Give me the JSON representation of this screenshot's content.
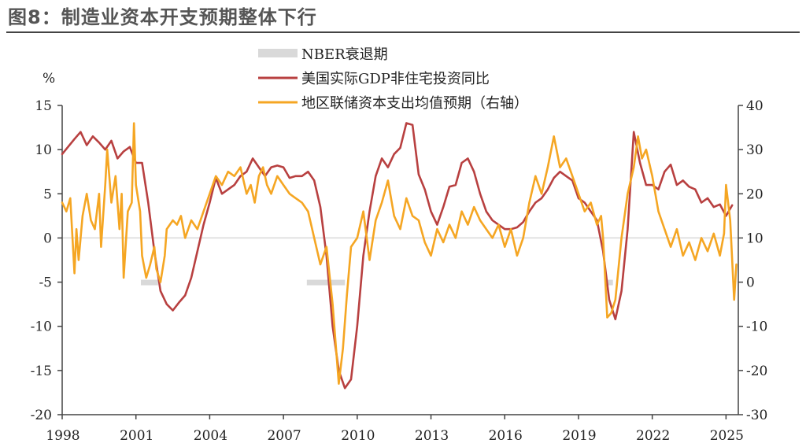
{
  "chart_data": {
    "type": "line",
    "title": "图8：制造业资本开支预期整体下行",
    "left_axis_unit": "%",
    "ylim_left": [
      -20,
      15
    ],
    "yticks_left": [
      15,
      10,
      5,
      0,
      -5,
      -10,
      -15,
      -20
    ],
    "ylim_right": [
      -30,
      40
    ],
    "yticks_right": [
      40,
      30,
      20,
      10,
      0,
      -10,
      -20,
      -30
    ],
    "xlim": [
      1998,
      2025.5
    ],
    "xticks": [
      "1998",
      "2001",
      "2004",
      "2007",
      "2010",
      "2013",
      "2016",
      "2019",
      "2022",
      "2025"
    ],
    "legend_placement": "top-center",
    "recessions": {
      "name": "NBER衰退期",
      "color": "#d9d9d9",
      "periods": [
        [
          2001.2,
          2001.9
        ],
        [
          2007.95,
          2009.5
        ],
        [
          2020.1,
          2020.4
        ]
      ]
    },
    "series": [
      {
        "name": "美国实际GDP非住宅投资同比",
        "axis": "left",
        "color": "#b84040",
        "points": [
          [
            1998.0,
            9.5
          ],
          [
            1998.5,
            11.2
          ],
          [
            1998.75,
            12.0
          ],
          [
            1999.0,
            10.5
          ],
          [
            1999.25,
            11.5
          ],
          [
            1999.5,
            10.8
          ],
          [
            1999.75,
            10.0
          ],
          [
            2000.0,
            11.0
          ],
          [
            2000.25,
            9.0
          ],
          [
            2000.5,
            9.8
          ],
          [
            2000.75,
            10.3
          ],
          [
            2001.0,
            8.5
          ],
          [
            2001.25,
            8.5
          ],
          [
            2001.5,
            4.0
          ],
          [
            2001.75,
            -1.5
          ],
          [
            2002.0,
            -6.0
          ],
          [
            2002.25,
            -7.5
          ],
          [
            2002.5,
            -8.2
          ],
          [
            2002.75,
            -7.3
          ],
          [
            2003.0,
            -6.5
          ],
          [
            2003.25,
            -4.5
          ],
          [
            2003.5,
            -1.5
          ],
          [
            2003.75,
            1.5
          ],
          [
            2004.0,
            4.0
          ],
          [
            2004.25,
            6.8
          ],
          [
            2004.5,
            5.0
          ],
          [
            2004.75,
            5.5
          ],
          [
            2005.0,
            6.0
          ],
          [
            2005.25,
            7.0
          ],
          [
            2005.5,
            7.5
          ],
          [
            2005.75,
            9.0
          ],
          [
            2006.0,
            8.0
          ],
          [
            2006.25,
            7.0
          ],
          [
            2006.5,
            8.0
          ],
          [
            2006.75,
            8.2
          ],
          [
            2007.0,
            8.0
          ],
          [
            2007.25,
            6.8
          ],
          [
            2007.5,
            7.0
          ],
          [
            2007.75,
            7.0
          ],
          [
            2008.0,
            7.5
          ],
          [
            2008.25,
            6.5
          ],
          [
            2008.5,
            3.5
          ],
          [
            2008.75,
            -2.0
          ],
          [
            2009.0,
            -10.0
          ],
          [
            2009.25,
            -15.0
          ],
          [
            2009.5,
            -17.0
          ],
          [
            2009.75,
            -16.0
          ],
          [
            2010.0,
            -10.0
          ],
          [
            2010.25,
            -2.0
          ],
          [
            2010.5,
            3.0
          ],
          [
            2010.75,
            7.0
          ],
          [
            2011.0,
            9.0
          ],
          [
            2011.25,
            8.0
          ],
          [
            2011.5,
            9.5
          ],
          [
            2011.75,
            10.2
          ],
          [
            2012.0,
            13.0
          ],
          [
            2012.25,
            12.8
          ],
          [
            2012.5,
            7.2
          ],
          [
            2012.75,
            5.5
          ],
          [
            2013.0,
            3.0
          ],
          [
            2013.25,
            1.5
          ],
          [
            2013.5,
            3.5
          ],
          [
            2013.75,
            5.8
          ],
          [
            2014.0,
            6.0
          ],
          [
            2014.25,
            8.5
          ],
          [
            2014.5,
            9.0
          ],
          [
            2014.75,
            7.5
          ],
          [
            2015.0,
            5.0
          ],
          [
            2015.25,
            3.0
          ],
          [
            2015.5,
            2.0
          ],
          [
            2015.75,
            1.5
          ],
          [
            2016.0,
            1.0
          ],
          [
            2016.25,
            1.0
          ],
          [
            2016.5,
            1.2
          ],
          [
            2016.75,
            1.8
          ],
          [
            2017.0,
            3.0
          ],
          [
            2017.25,
            4.0
          ],
          [
            2017.5,
            4.5
          ],
          [
            2017.75,
            5.5
          ],
          [
            2018.0,
            6.8
          ],
          [
            2018.25,
            7.5
          ],
          [
            2018.5,
            7.0
          ],
          [
            2018.75,
            6.5
          ],
          [
            2019.0,
            4.5
          ],
          [
            2019.25,
            4.0
          ],
          [
            2019.5,
            3.0
          ],
          [
            2019.75,
            2.0
          ],
          [
            2020.0,
            -1.5
          ],
          [
            2020.25,
            -7.0
          ],
          [
            2020.5,
            -9.2
          ],
          [
            2020.75,
            -6.0
          ],
          [
            2021.0,
            1.0
          ],
          [
            2021.25,
            12.0
          ],
          [
            2021.5,
            8.5
          ],
          [
            2021.75,
            6.0
          ],
          [
            2022.0,
            6.0
          ],
          [
            2022.25,
            5.5
          ],
          [
            2022.5,
            7.5
          ],
          [
            2022.75,
            8.3
          ],
          [
            2023.0,
            6.0
          ],
          [
            2023.25,
            6.5
          ],
          [
            2023.5,
            5.8
          ],
          [
            2023.75,
            5.5
          ],
          [
            2024.0,
            4.0
          ],
          [
            2024.25,
            4.5
          ],
          [
            2024.5,
            3.5
          ],
          [
            2024.75,
            3.8
          ],
          [
            2025.0,
            2.5
          ],
          [
            2025.25,
            3.7
          ]
        ]
      },
      {
        "name": "地区联储资本支出均值预期（右轴）",
        "axis": "right",
        "color": "#f5a623",
        "points": [
          [
            1998.0,
            18.0
          ],
          [
            1998.17,
            16.0
          ],
          [
            1998.33,
            19.0
          ],
          [
            1998.42,
            10.0
          ],
          [
            1998.5,
            2.0
          ],
          [
            1998.58,
            12.0
          ],
          [
            1998.67,
            5.0
          ],
          [
            1998.83,
            15.0
          ],
          [
            1999.0,
            20.0
          ],
          [
            1999.17,
            14.0
          ],
          [
            1999.33,
            12.0
          ],
          [
            1999.5,
            20.0
          ],
          [
            1999.58,
            8.0
          ],
          [
            1999.75,
            22.0
          ],
          [
            1999.83,
            30.0
          ],
          [
            2000.0,
            18.0
          ],
          [
            2000.17,
            24.0
          ],
          [
            2000.33,
            12.0
          ],
          [
            2000.42,
            20.0
          ],
          [
            2000.5,
            1.0
          ],
          [
            2000.67,
            16.0
          ],
          [
            2000.83,
            18.0
          ],
          [
            2000.92,
            36.0
          ],
          [
            2001.0,
            22.0
          ],
          [
            2001.17,
            16.0
          ],
          [
            2001.25,
            6.0
          ],
          [
            2001.42,
            1.0
          ],
          [
            2001.58,
            4.0
          ],
          [
            2001.75,
            8.0
          ],
          [
            2001.83,
            3.0
          ],
          [
            2002.0,
            0.0
          ],
          [
            2002.17,
            6.0
          ],
          [
            2002.25,
            12.0
          ],
          [
            2002.5,
            14.0
          ],
          [
            2002.67,
            13.0
          ],
          [
            2002.83,
            15.0
          ],
          [
            2003.0,
            10.0
          ],
          [
            2003.25,
            14.0
          ],
          [
            2003.5,
            12.0
          ],
          [
            2003.75,
            16.0
          ],
          [
            2004.0,
            20.0
          ],
          [
            2004.25,
            24.0
          ],
          [
            2004.5,
            22.0
          ],
          [
            2004.75,
            25.0
          ],
          [
            2005.0,
            24.0
          ],
          [
            2005.25,
            26.0
          ],
          [
            2005.5,
            20.0
          ],
          [
            2005.67,
            22.0
          ],
          [
            2005.83,
            18.0
          ],
          [
            2006.0,
            24.0
          ],
          [
            2006.17,
            26.0
          ],
          [
            2006.33,
            22.0
          ],
          [
            2006.5,
            20.0
          ],
          [
            2006.75,
            24.0
          ],
          [
            2007.0,
            22.0
          ],
          [
            2007.25,
            20.0
          ],
          [
            2007.5,
            19.0
          ],
          [
            2007.75,
            18.0
          ],
          [
            2008.0,
            16.0
          ],
          [
            2008.25,
            10.0
          ],
          [
            2008.5,
            4.0
          ],
          [
            2008.75,
            8.0
          ],
          [
            2009.0,
            -5.0
          ],
          [
            2009.25,
            -23.0
          ],
          [
            2009.42,
            -15.0
          ],
          [
            2009.58,
            -3.0
          ],
          [
            2009.75,
            8.0
          ],
          [
            2010.0,
            10.0
          ],
          [
            2010.25,
            16.0
          ],
          [
            2010.5,
            5.0
          ],
          [
            2010.75,
            14.0
          ],
          [
            2011.0,
            18.0
          ],
          [
            2011.25,
            23.0
          ],
          [
            2011.5,
            15.0
          ],
          [
            2011.75,
            12.0
          ],
          [
            2012.0,
            19.0
          ],
          [
            2012.25,
            15.0
          ],
          [
            2012.5,
            14.0
          ],
          [
            2012.75,
            9.0
          ],
          [
            2013.0,
            6.0
          ],
          [
            2013.25,
            12.0
          ],
          [
            2013.5,
            9.0
          ],
          [
            2013.75,
            13.0
          ],
          [
            2014.0,
            10.0
          ],
          [
            2014.25,
            16.0
          ],
          [
            2014.5,
            13.0
          ],
          [
            2014.75,
            17.0
          ],
          [
            2015.0,
            14.0
          ],
          [
            2015.25,
            12.0
          ],
          [
            2015.5,
            10.0
          ],
          [
            2015.75,
            13.0
          ],
          [
            2016.0,
            8.0
          ],
          [
            2016.25,
            12.0
          ],
          [
            2016.5,
            6.0
          ],
          [
            2016.75,
            10.0
          ],
          [
            2017.0,
            18.0
          ],
          [
            2017.25,
            24.0
          ],
          [
            2017.5,
            20.0
          ],
          [
            2017.75,
            26.0
          ],
          [
            2018.0,
            33.0
          ],
          [
            2018.25,
            26.0
          ],
          [
            2018.5,
            28.0
          ],
          [
            2018.75,
            24.0
          ],
          [
            2019.0,
            20.0
          ],
          [
            2019.25,
            16.0
          ],
          [
            2019.5,
            18.0
          ],
          [
            2019.75,
            13.0
          ],
          [
            2019.92,
            15.0
          ],
          [
            2020.0,
            10.0
          ],
          [
            2020.17,
            -8.0
          ],
          [
            2020.33,
            -7.0
          ],
          [
            2020.5,
            -4.0
          ],
          [
            2020.75,
            10.0
          ],
          [
            2021.0,
            20.0
          ],
          [
            2021.25,
            26.0
          ],
          [
            2021.42,
            33.0
          ],
          [
            2021.58,
            28.0
          ],
          [
            2021.75,
            30.0
          ],
          [
            2022.0,
            24.0
          ],
          [
            2022.25,
            16.0
          ],
          [
            2022.5,
            12.0
          ],
          [
            2022.75,
            8.0
          ],
          [
            2023.0,
            12.0
          ],
          [
            2023.25,
            6.0
          ],
          [
            2023.5,
            9.0
          ],
          [
            2023.75,
            5.0
          ],
          [
            2024.0,
            10.0
          ],
          [
            2024.25,
            7.0
          ],
          [
            2024.5,
            11.0
          ],
          [
            2024.75,
            6.0
          ],
          [
            2024.92,
            11.0
          ],
          [
            2025.0,
            22.0
          ],
          [
            2025.17,
            14.0
          ],
          [
            2025.33,
            -4.0
          ],
          [
            2025.42,
            4.0
          ]
        ]
      }
    ]
  }
}
